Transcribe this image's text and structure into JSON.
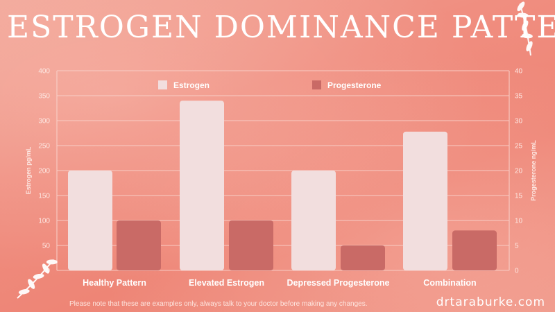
{
  "title": "Estrogen Dominance Patterns",
  "footnote": "Please note that these are examples only, always talk to your doctor before making any changes.",
  "brand": "drtaraburke.com",
  "colors": {
    "estrogen": "#f2dede",
    "progesterone": "#c96a66",
    "grid": "#f9d3cc",
    "text": "#ffffff"
  },
  "chart_data": {
    "type": "bar",
    "categories": [
      "Healthy Pattern",
      "Elevated Estrogen",
      "Depressed Progesterone",
      "Combination"
    ],
    "series": [
      {
        "name": "Estrogen",
        "axis": "left",
        "values": [
          200,
          340,
          200,
          278
        ]
      },
      {
        "name": "Progesterone",
        "axis": "right",
        "values": [
          10,
          10,
          5,
          8
        ]
      }
    ],
    "ylabel_left": "Estrogen pg/mL",
    "ylabel_right": "Progesterone ng/mL",
    "ylim_left": [
      0,
      400
    ],
    "ylim_right": [
      0,
      40
    ],
    "yticks_left": [
      0,
      50,
      100,
      150,
      200,
      250,
      300,
      350,
      400
    ],
    "yticks_right": [
      0,
      5,
      10,
      15,
      20,
      25,
      30,
      35,
      40
    ],
    "legend": "top-center",
    "grid": true
  }
}
